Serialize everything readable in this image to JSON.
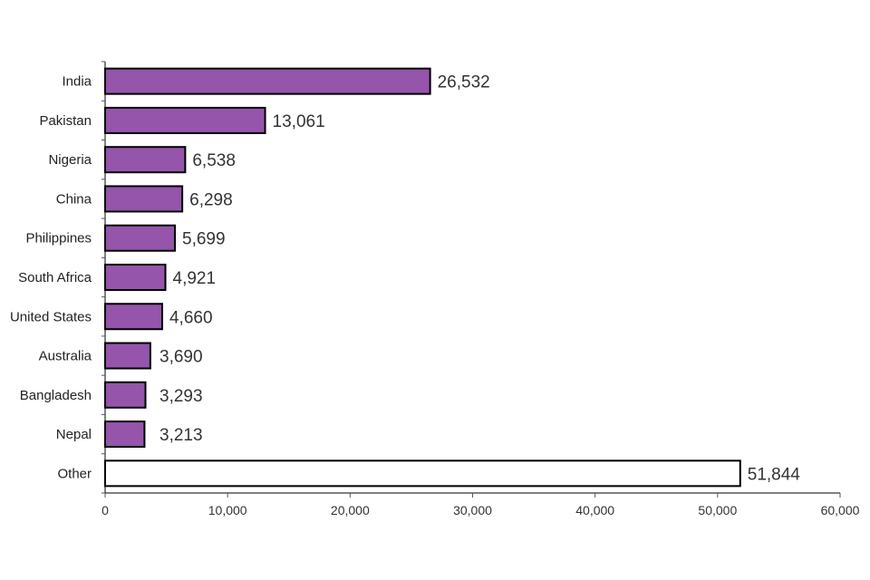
{
  "chart_data": {
    "type": "bar",
    "orientation": "horizontal",
    "title": "",
    "xlabel": "",
    "ylabel": "",
    "categories": [
      "India",
      "Pakistan",
      "Nigeria",
      "China",
      "Philippines",
      "South Africa",
      "United States",
      "Australia",
      "Bangladesh",
      "Nepal",
      "Other"
    ],
    "values": [
      26532,
      13061,
      6538,
      6298,
      5699,
      4921,
      4660,
      3690,
      3293,
      3213,
      51844
    ],
    "value_labels": [
      "26,532",
      "13,061",
      "6,538",
      "6,298",
      "5,699",
      "4,921",
      "4,660",
      "3,690",
      "3,293",
      "3,213",
      "51,844"
    ],
    "xlim": [
      0,
      60000
    ],
    "xticks": [
      0,
      10000,
      20000,
      30000,
      40000,
      50000,
      60000
    ],
    "xtick_labels": [
      "0",
      "10,000",
      "20,000",
      "30,000",
      "40,000",
      "50,000",
      "60,000"
    ],
    "grid": false,
    "legend": "none",
    "colors": {
      "bar_fill": "#9455ab",
      "other_fill": "#ffffff",
      "bar_stroke": "#000000"
    }
  }
}
